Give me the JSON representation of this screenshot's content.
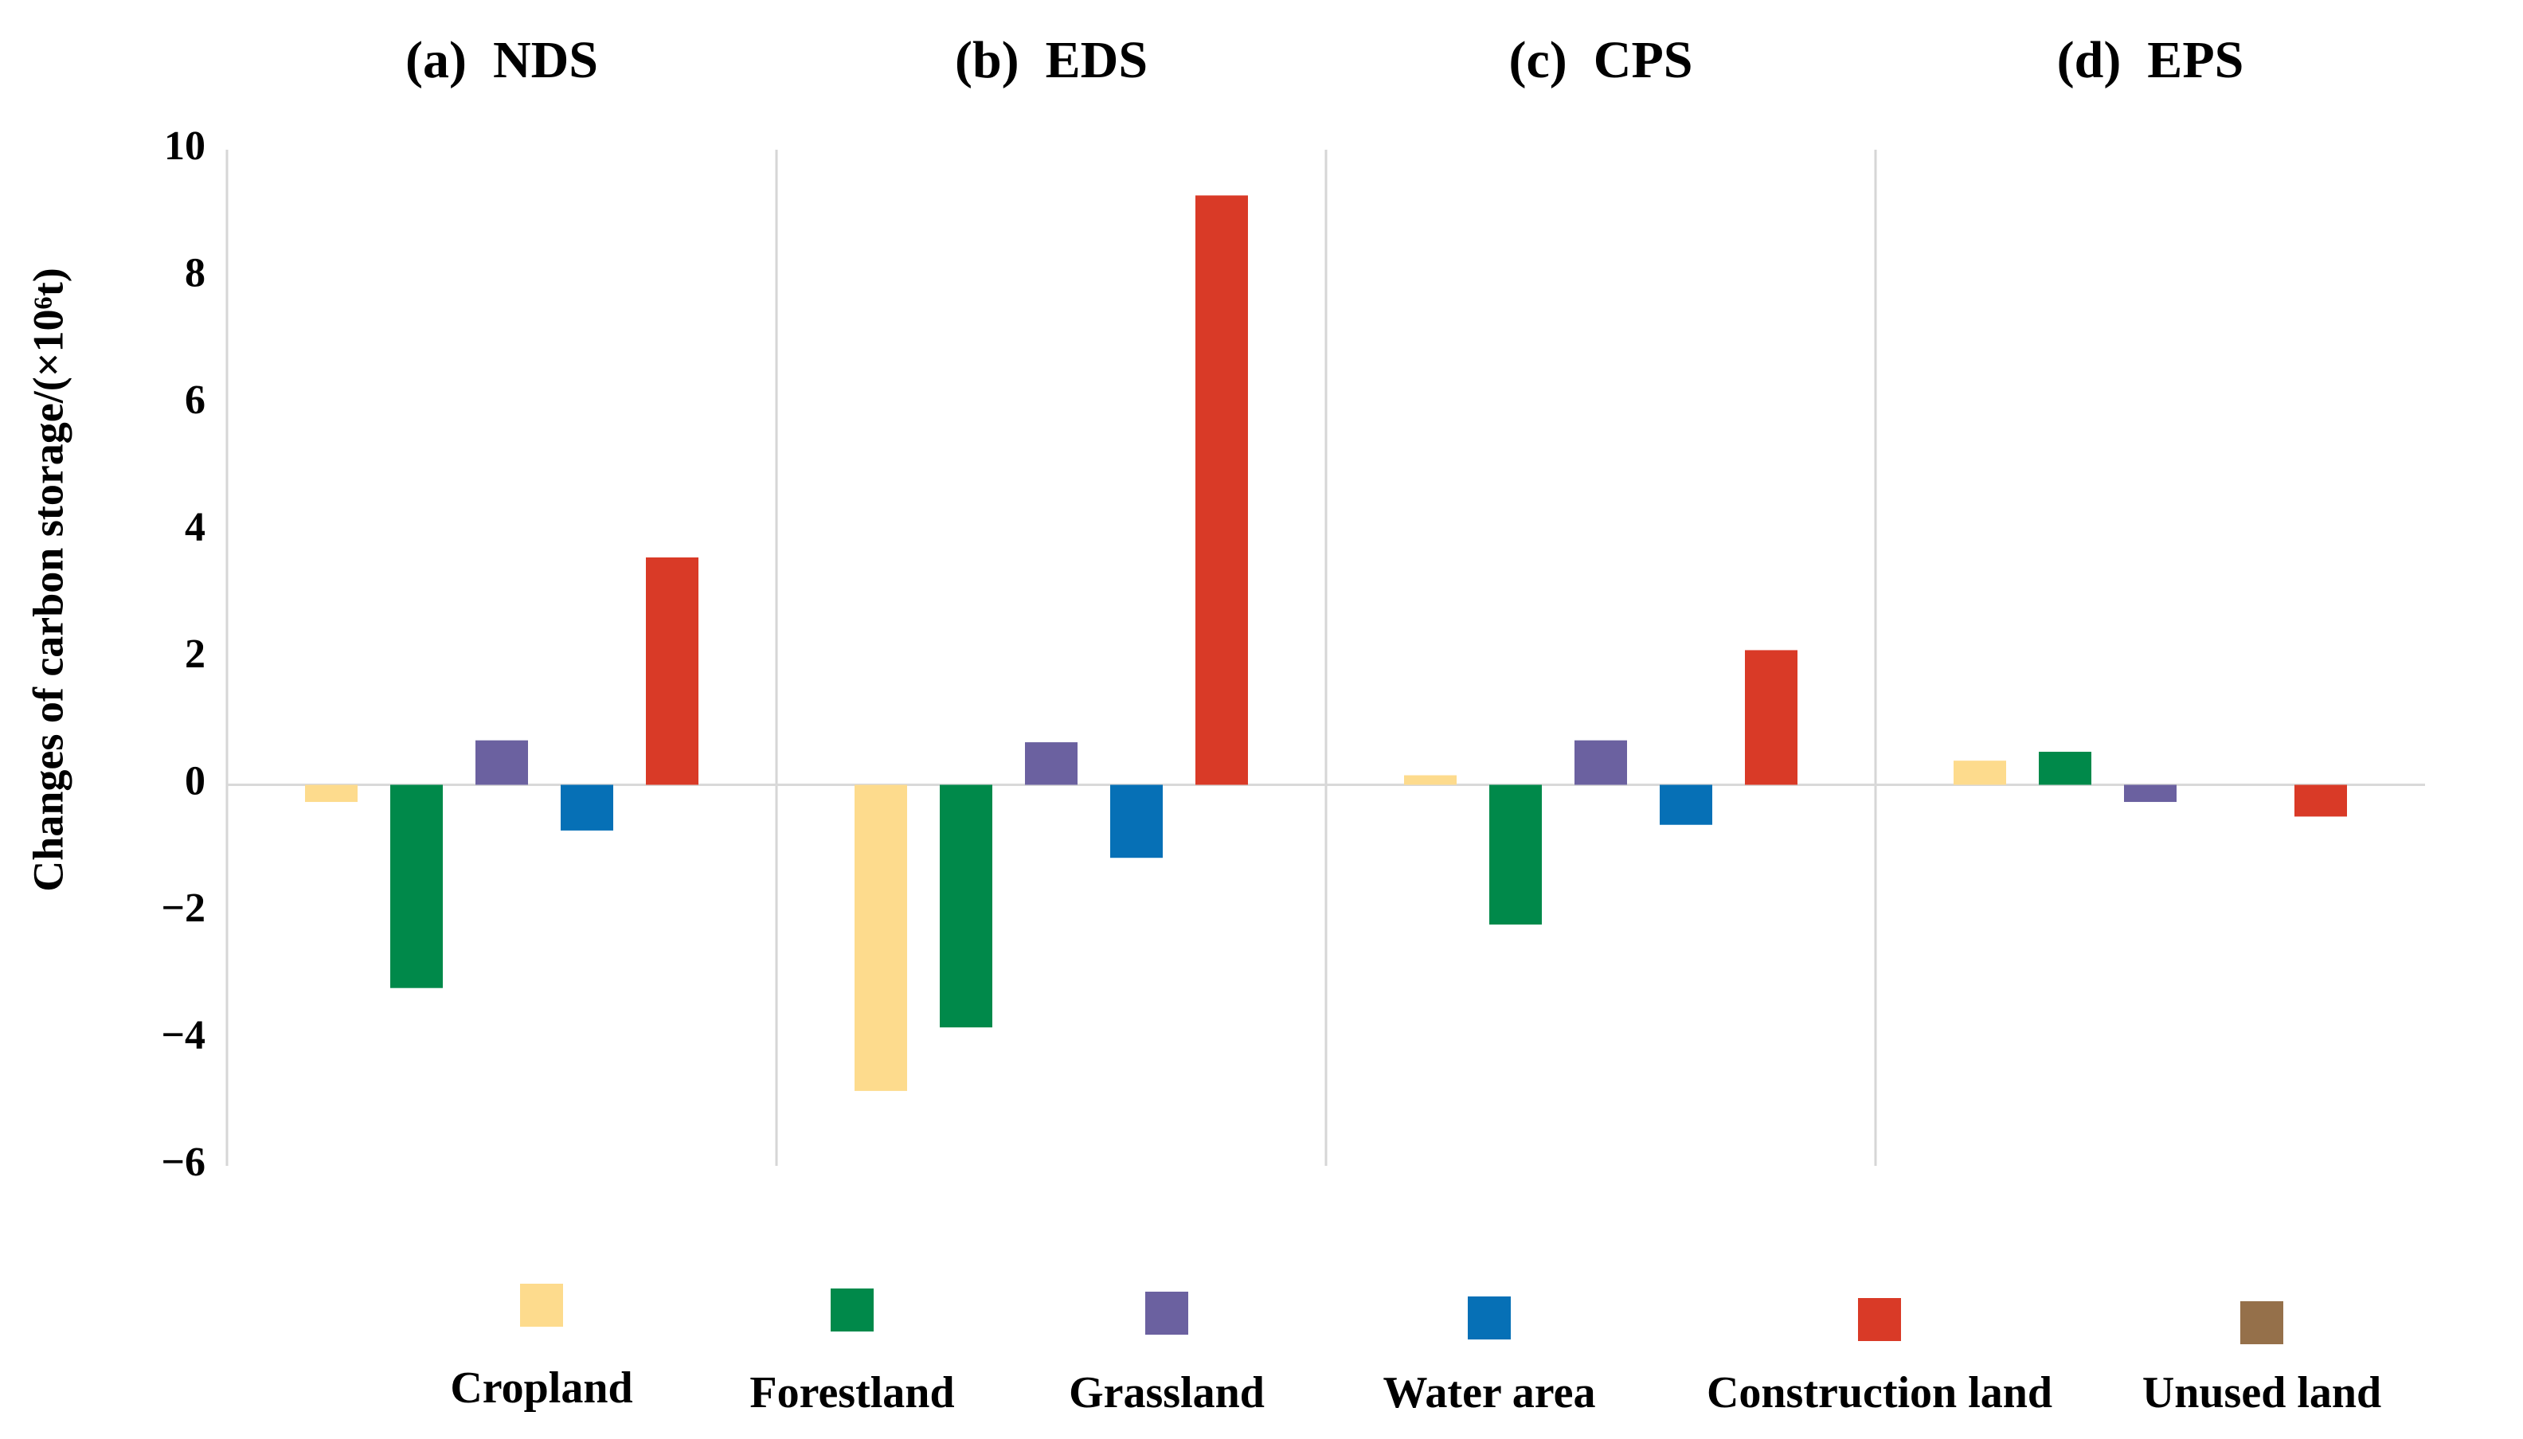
{
  "chart_data": {
    "type": "bar",
    "ylabel": "Changes of carbon storage/(×10⁶t)",
    "ylim": [
      -6,
      10
    ],
    "yticks": [
      10,
      8,
      6,
      4,
      2,
      0,
      -2,
      -4,
      -6
    ],
    "ytick_labels": [
      "10",
      "8",
      "6",
      "4",
      "2",
      "0",
      "−2",
      "−4",
      "−6"
    ],
    "panels": [
      {
        "title": "(a)  NDS",
        "series": [
          {
            "name": "Cropland",
            "value": -0.27
          },
          {
            "name": "Forestland",
            "value": -3.2
          },
          {
            "name": "Grassland",
            "value": 0.7
          },
          {
            "name": "Water area",
            "value": -0.72
          },
          {
            "name": "Construction land",
            "value": 3.58
          },
          {
            "name": "Unused land",
            "value": 0.0
          }
        ]
      },
      {
        "title": "(b)  EDS",
        "series": [
          {
            "name": "Cropland",
            "value": -4.82
          },
          {
            "name": "Forestland",
            "value": -3.82
          },
          {
            "name": "Grassland",
            "value": 0.67
          },
          {
            "name": "Water area",
            "value": -1.15
          },
          {
            "name": "Construction land",
            "value": 9.28
          },
          {
            "name": "Unused land",
            "value": 0.0
          }
        ]
      },
      {
        "title": "(c)  CPS",
        "series": [
          {
            "name": "Cropland",
            "value": 0.15
          },
          {
            "name": "Forestland",
            "value": -2.2
          },
          {
            "name": "Grassland",
            "value": 0.7
          },
          {
            "name": "Water area",
            "value": -0.63
          },
          {
            "name": "Construction land",
            "value": 2.12
          },
          {
            "name": "Unused land",
            "value": 0.0
          }
        ]
      },
      {
        "title": "(d)  EPS",
        "series": [
          {
            "name": "Cropland",
            "value": 0.38
          },
          {
            "name": "Forestland",
            "value": 0.52
          },
          {
            "name": "Grassland",
            "value": -0.27
          },
          {
            "name": "Water area",
            "value": 0.0
          },
          {
            "name": "Construction land",
            "value": -0.5
          },
          {
            "name": "Unused land",
            "value": 0.0
          }
        ]
      }
    ],
    "legend": [
      {
        "name": "Cropland",
        "color": "#FDDB8D"
      },
      {
        "name": "Forestland",
        "color": "#00894A"
      },
      {
        "name": "Grassland",
        "color": "#6B61A0"
      },
      {
        "name": "Water area",
        "color": "#0670B6"
      },
      {
        "name": "Construction land",
        "color": "#D93A27"
      },
      {
        "name": "Unused land",
        "color": "#95704A"
      }
    ],
    "legend_position": "bottom",
    "grid": false
  }
}
